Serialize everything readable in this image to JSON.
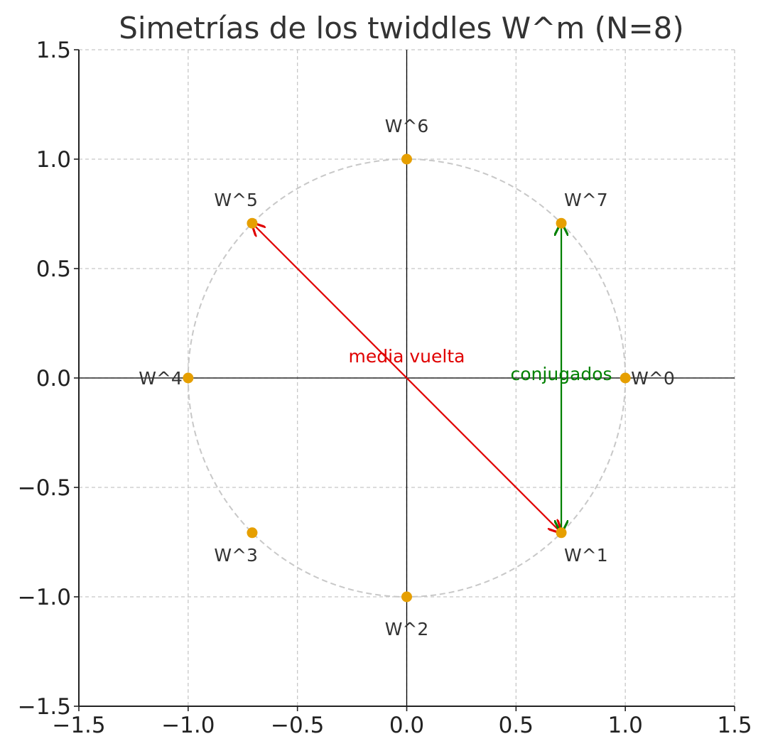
{
  "chart_data": {
    "type": "scatter",
    "title": "Simetrías de los twiddles W^m (N=8)",
    "xlabel": "",
    "ylabel": "",
    "xlim": [
      -1.5,
      1.5
    ],
    "ylim": [
      -1.5,
      1.5
    ],
    "x_ticks": [
      "−1.5",
      "−1.0",
      "−0.5",
      "0.0",
      "0.5",
      "1.0",
      "1.5"
    ],
    "y_ticks": [
      "1.5",
      "1.0",
      "0.5",
      "0.0",
      "−0.5",
      "−1.0",
      "−1.5"
    ],
    "grid": true,
    "unit_circle": {
      "radius": 1.0,
      "style": "dashed"
    },
    "points": [
      {
        "label": "W^0",
        "x": 1.0,
        "y": 0.0
      },
      {
        "label": "W^1",
        "x": 0.7071,
        "y": -0.7071
      },
      {
        "label": "W^2",
        "x": 0.0,
        "y": -1.0
      },
      {
        "label": "W^3",
        "x": -0.7071,
        "y": -0.7071
      },
      {
        "label": "W^4",
        "x": -1.0,
        "y": 0.0
      },
      {
        "label": "W^5",
        "x": -0.7071,
        "y": 0.7071
      },
      {
        "label": "W^6",
        "x": 0.0,
        "y": 1.0
      },
      {
        "label": "W^7",
        "x": 0.7071,
        "y": 0.7071
      }
    ],
    "annotations": [
      {
        "text": "media vuelta",
        "color": "#e00000",
        "from": [
          0.7071,
          -0.7071
        ],
        "to": [
          -0.7071,
          0.7071
        ],
        "text_at": [
          0.0,
          0.1
        ],
        "two_headed": true
      },
      {
        "text": "conjugados",
        "color": "#008000",
        "from": [
          0.7071,
          0.7071
        ],
        "to": [
          0.7071,
          -0.7071
        ],
        "text_at": [
          0.7071,
          0.02
        ],
        "two_headed": true
      }
    ],
    "colors": {
      "points": "#e69f00",
      "circle": "#c8c8c8",
      "grid": "#c8c8c8",
      "axes": "#000000"
    }
  }
}
